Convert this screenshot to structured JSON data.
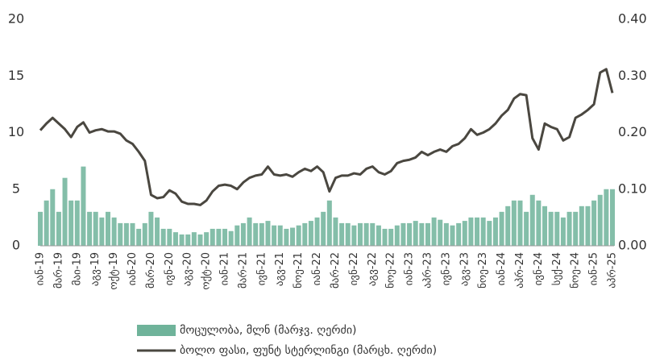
{
  "chart_data": {
    "type": "bar-line",
    "categories": [
      "იან-19",
      null,
      null,
      "მარ-19",
      null,
      null,
      "მაი-19",
      null,
      null,
      "აგვ-19",
      null,
      null,
      "ოქტ-19",
      null,
      null,
      "იან-20",
      null,
      null,
      "მარ-20",
      null,
      null,
      "ივნ-20",
      null,
      null,
      "აგვ-20",
      null,
      null,
      "ოქტ-20",
      null,
      null,
      "იან-21",
      null,
      null,
      "მარ-21",
      null,
      null,
      "ივნ-21",
      null,
      null,
      "აგვ-21",
      null,
      null,
      "ნოე-21",
      null,
      null,
      "იან-22",
      null,
      null,
      "მარ-22",
      null,
      null,
      "ივნ-22",
      null,
      null,
      "აგვ-22",
      null,
      null,
      "ნოე-22",
      null,
      null,
      "იან-23",
      null,
      null,
      "აპრ-23",
      null,
      null,
      "ივნ-23",
      null,
      null,
      "აგვ-23",
      null,
      null,
      "ნოე-23",
      null,
      null,
      "იან-24",
      null,
      null,
      "აპრ-24",
      null,
      null,
      "ივნ-24",
      null,
      null,
      "სექ-24",
      null,
      null,
      "ნოე-24",
      null,
      null,
      "იან-25",
      null,
      null,
      "აპრ-25"
    ],
    "series": [
      {
        "name": "მოცულობა, მლნ (მარჯვ. ღერძი)",
        "type": "bar",
        "color": "#6fb39a",
        "values": [
          3,
          4,
          5,
          3,
          6,
          4,
          4,
          7,
          3,
          3,
          2.5,
          3,
          2.5,
          2,
          2,
          2,
          1.5,
          2,
          3,
          2.5,
          1.5,
          1.5,
          1.2,
          1,
          1,
          1.2,
          1,
          1.2,
          1.5,
          1.5,
          1.5,
          1.3,
          1.8,
          2,
          2.5,
          2,
          2,
          2.2,
          1.8,
          1.8,
          1.5,
          1.6,
          1.8,
          2,
          2.2,
          2.5,
          3,
          4,
          2.5,
          2,
          2,
          1.8,
          2,
          2,
          2,
          1.8,
          1.5,
          1.5,
          1.8,
          2,
          2,
          2.2,
          2,
          2,
          2.5,
          2.3,
          2,
          1.8,
          2,
          2.2,
          2.5,
          2.5,
          2.5,
          2.2,
          2.5,
          3,
          3.5,
          4,
          4,
          3,
          4.5,
          4,
          3.5,
          3,
          3,
          2.5,
          3,
          3,
          3.5,
          3.5,
          4,
          4.5,
          5,
          5
        ]
      },
      {
        "name": "ბოლო ფასი, ფუნტ სტერლინგი (მარცხ. ღერძი)",
        "type": "line",
        "axis": "y2",
        "color": "#4a4740",
        "values": [
          0.204,
          0.216,
          0.226,
          0.216,
          0.206,
          0.192,
          0.21,
          0.218,
          0.2,
          0.204,
          0.206,
          0.202,
          0.202,
          0.198,
          0.186,
          0.18,
          0.166,
          0.15,
          0.09,
          0.084,
          0.086,
          0.098,
          0.092,
          0.078,
          0.074,
          0.074,
          0.072,
          0.08,
          0.096,
          0.106,
          0.108,
          0.106,
          0.1,
          0.112,
          0.12,
          0.124,
          0.126,
          0.14,
          0.126,
          0.124,
          0.126,
          0.122,
          0.13,
          0.136,
          0.132,
          0.14,
          0.13,
          0.096,
          0.12,
          0.124,
          0.124,
          0.128,
          0.126,
          0.136,
          0.14,
          0.13,
          0.126,
          0.132,
          0.146,
          0.15,
          0.152,
          0.156,
          0.166,
          0.16,
          0.166,
          0.17,
          0.166,
          0.176,
          0.18,
          0.19,
          0.206,
          0.196,
          0.2,
          0.206,
          0.216,
          0.23,
          0.24,
          0.26,
          0.268,
          0.266,
          0.19,
          0.17,
          0.216,
          0.21,
          0.206,
          0.186,
          0.192,
          0.226,
          0.232,
          0.24,
          0.25,
          0.306,
          0.312,
          0.27
        ]
      }
    ],
    "ylim": [
      0,
      20
    ],
    "yticks": [
      0,
      5,
      10,
      15,
      20
    ],
    "y2lim": [
      0,
      0.4
    ],
    "y2ticks": [
      {
        "value": 0,
        "label": "0.00"
      },
      {
        "value": 0.1,
        "label": "0.10"
      },
      {
        "value": 0.2,
        "label": "0.20"
      },
      {
        "value": 0.3,
        "label": "0.30"
      },
      {
        "value": 0.4,
        "label": "0.40"
      }
    ],
    "grid": false
  }
}
